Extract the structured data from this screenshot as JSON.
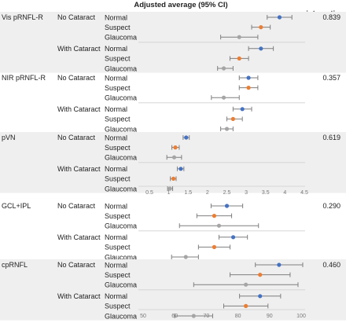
{
  "chart_data": {
    "type": "scatter",
    "title": "Adjusted average (95% CI)",
    "pint_header": "p-interaction",
    "colors": {
      "Normal": "#4472C4",
      "Suspect": "#ED7D31",
      "Glaucoma": "#A5A5A5",
      "whisker": "#7F7F7F",
      "band": "#EFEFEF"
    },
    "panels": [
      {
        "measure": "Vis pRNFL-R",
        "p_interaction": "0.839",
        "axis": null,
        "groups": [
          {
            "label": "No Cataract",
            "rows": [
              {
                "diagnosis": "Normal",
                "est": 0.92,
                "lo": 0.88,
                "hi": 0.96
              },
              {
                "diagnosis": "Suspect",
                "est": 0.86,
                "lo": 0.83,
                "hi": 0.89
              },
              {
                "diagnosis": "Glaucoma",
                "est": 0.79,
                "lo": 0.73,
                "hi": 0.85
              }
            ]
          },
          {
            "label": "With Cataract",
            "rows": [
              {
                "diagnosis": "Normal",
                "est": 0.86,
                "lo": 0.82,
                "hi": 0.9
              },
              {
                "diagnosis": "Suspect",
                "est": 0.79,
                "lo": 0.76,
                "hi": 0.82
              },
              {
                "diagnosis": "Glaucoma",
                "est": 0.74,
                "lo": 0.72,
                "hi": 0.77
              }
            ]
          }
        ]
      },
      {
        "measure": "NIR pRNFL-R",
        "p_interaction": "0.357",
        "axis": null,
        "groups": [
          {
            "label": "No Cataract",
            "rows": [
              {
                "diagnosis": "Normal",
                "est": 0.82,
                "lo": 0.79,
                "hi": 0.85
              },
              {
                "diagnosis": "Suspect",
                "est": 0.82,
                "lo": 0.79,
                "hi": 0.85
              },
              {
                "diagnosis": "Glaucoma",
                "est": 0.74,
                "lo": 0.7,
                "hi": 0.79
              }
            ]
          },
          {
            "label": "With Cataract",
            "rows": [
              {
                "diagnosis": "Normal",
                "est": 0.8,
                "lo": 0.77,
                "hi": 0.83
              },
              {
                "diagnosis": "Suspect",
                "est": 0.77,
                "lo": 0.75,
                "hi": 0.8
              },
              {
                "diagnosis": "Glaucoma",
                "est": 0.75,
                "lo": 0.73,
                "hi": 0.77
              }
            ]
          }
        ]
      },
      {
        "measure": "pVN",
        "p_interaction": "0.619",
        "axis": {
          "min": 0.5,
          "max": 4.5,
          "step": 0.5,
          "ticks": [
            "0.5",
            "1",
            "1.5",
            "2",
            "2.5",
            "3",
            "3.5",
            "4",
            "4.5"
          ]
        },
        "groups": [
          {
            "label": "No Cataract",
            "rows": [
              {
                "diagnosis": "Normal",
                "est": 1.45,
                "lo": 1.37,
                "hi": 1.53
              },
              {
                "diagnosis": "Suspect",
                "est": 1.17,
                "lo": 1.08,
                "hi": 1.27
              },
              {
                "diagnosis": "Glaucoma",
                "est": 1.14,
                "lo": 0.95,
                "hi": 1.33
              }
            ]
          },
          {
            "label": "With Cataract",
            "rows": [
              {
                "diagnosis": "Normal",
                "est": 1.31,
                "lo": 1.22,
                "hi": 1.39
              },
              {
                "diagnosis": "Suspect",
                "est": 1.12,
                "lo": 1.04,
                "hi": 1.19
              },
              {
                "diagnosis": "Glaucoma",
                "est": 1.03,
                "lo": 0.97,
                "hi": 1.1
              }
            ]
          }
        ]
      },
      {
        "measure": "GCL+IPL",
        "p_interaction": "0.290",
        "axis": null,
        "groups": [
          {
            "label": "No Cataract",
            "rows": [
              {
                "diagnosis": "Normal",
                "est": 76.5,
                "lo": 71.5,
                "hi": 81.5
              },
              {
                "diagnosis": "Suspect",
                "est": 72.5,
                "lo": 67.0,
                "hi": 78.0
              },
              {
                "diagnosis": "Glaucoma",
                "est": 74.0,
                "lo": 61.5,
                "hi": 86.5
              }
            ]
          },
          {
            "label": "With Cataract",
            "rows": [
              {
                "diagnosis": "Normal",
                "est": 78.5,
                "lo": 74.0,
                "hi": 83.0
              },
              {
                "diagnosis": "Suspect",
                "est": 72.5,
                "lo": 67.5,
                "hi": 77.5
              },
              {
                "diagnosis": "Glaucoma",
                "est": 63.5,
                "lo": 59.0,
                "hi": 67.5
              }
            ]
          }
        ]
      },
      {
        "measure": "cpRNFL",
        "p_interaction": "0.460",
        "axis": {
          "min": 50,
          "max": 100,
          "step": 10,
          "ticks": [
            "50",
            "60",
            "70",
            "80",
            "90",
            "100"
          ]
        },
        "groups": [
          {
            "label": "No Cataract",
            "rows": [
              {
                "diagnosis": "Normal",
                "est": 93.0,
                "lo": 85.5,
                "hi": 100.5
              },
              {
                "diagnosis": "Suspect",
                "est": 87.0,
                "lo": 77.5,
                "hi": 96.5
              },
              {
                "diagnosis": "Glaucoma",
                "est": 82.5,
                "lo": 66.0,
                "hi": 99.0
              }
            ]
          },
          {
            "label": "With Cataract",
            "rows": [
              {
                "diagnosis": "Normal",
                "est": 87.0,
                "lo": 80.5,
                "hi": 93.5
              },
              {
                "diagnosis": "Suspect",
                "est": 82.5,
                "lo": 75.5,
                "hi": 89.5
              },
              {
                "diagnosis": "Glaucoma",
                "est": 66.0,
                "lo": 60.0,
                "hi": 72.0
              }
            ]
          }
        ]
      }
    ]
  }
}
